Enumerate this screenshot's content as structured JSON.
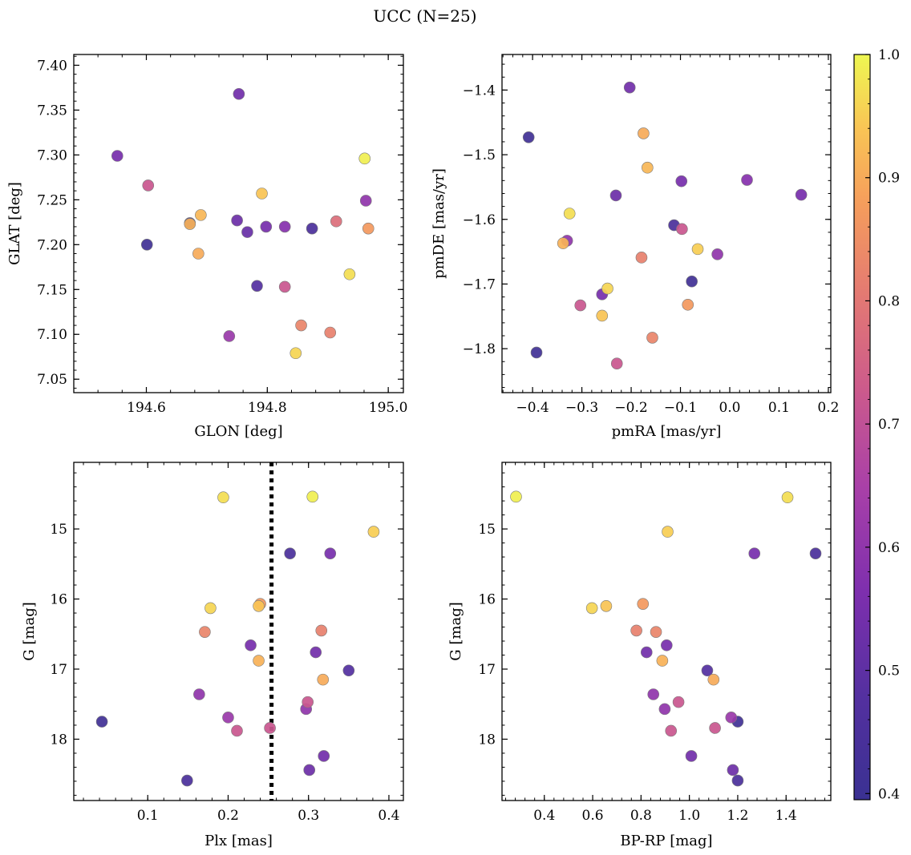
{
  "suptitle": "UCC (N=25)",
  "colorbar": {
    "ticks": [
      "0.4",
      "0.5",
      "0.6",
      "0.7",
      "0.8",
      "0.9",
      "1.0"
    ],
    "tick_values": [
      0.4,
      0.5,
      0.6,
      0.7,
      0.8,
      0.9,
      1.0
    ],
    "range": [
      0.395,
      1.0
    ],
    "colormap": "plasma"
  },
  "chart_data": [
    {
      "type": "scatter",
      "xlabel": "GLON [deg]",
      "ylabel": "GLAT [deg]",
      "xlim": [
        194.48,
        195.025
      ],
      "ylim": [
        7.035,
        7.412
      ],
      "xticks": [
        194.6,
        194.8,
        195.0
      ],
      "xticklabels": [
        "194.6",
        "194.8",
        "195.0"
      ],
      "yticks": [
        7.05,
        7.1,
        7.15,
        7.2,
        7.25,
        7.3,
        7.35,
        7.4
      ],
      "yticklabels": [
        "7.05",
        "7.10",
        "7.15",
        "7.20",
        "7.25",
        "7.30",
        "7.35",
        "7.40"
      ],
      "points": [
        {
          "x": 194.552,
          "y": 7.299,
          "c": 0.55
        },
        {
          "x": 194.601,
          "y": 7.2,
          "c": 0.42
        },
        {
          "x": 194.603,
          "y": 7.266,
          "c": 0.72
        },
        {
          "x": 194.672,
          "y": 7.224,
          "c": 0.42
        },
        {
          "x": 194.672,
          "y": 7.223,
          "c": 0.91
        },
        {
          "x": 194.686,
          "y": 7.19,
          "c": 0.9
        },
        {
          "x": 194.69,
          "y": 7.233,
          "c": 0.92
        },
        {
          "x": 194.737,
          "y": 7.098,
          "c": 0.62
        },
        {
          "x": 194.75,
          "y": 7.227,
          "c": 0.53
        },
        {
          "x": 194.753,
          "y": 7.368,
          "c": 0.54
        },
        {
          "x": 194.767,
          "y": 7.214,
          "c": 0.52
        },
        {
          "x": 194.783,
          "y": 7.154,
          "c": 0.48
        },
        {
          "x": 194.791,
          "y": 7.257,
          "c": 0.94
        },
        {
          "x": 194.798,
          "y": 7.22,
          "c": 0.55
        },
        {
          "x": 194.829,
          "y": 7.22,
          "c": 0.58
        },
        {
          "x": 194.829,
          "y": 7.153,
          "c": 0.72
        },
        {
          "x": 194.847,
          "y": 7.079,
          "c": 0.96
        },
        {
          "x": 194.856,
          "y": 7.11,
          "c": 0.83
        },
        {
          "x": 194.874,
          "y": 7.218,
          "c": 0.45
        },
        {
          "x": 194.904,
          "y": 7.102,
          "c": 0.82
        },
        {
          "x": 194.914,
          "y": 7.226,
          "c": 0.78
        },
        {
          "x": 194.936,
          "y": 7.167,
          "c": 0.97
        },
        {
          "x": 194.961,
          "y": 7.296,
          "c": 0.99
        },
        {
          "x": 194.963,
          "y": 7.249,
          "c": 0.6
        },
        {
          "x": 194.967,
          "y": 7.218,
          "c": 0.87
        }
      ]
    },
    {
      "type": "scatter",
      "xlabel": "pmRA [mas/yr]",
      "ylabel": "pmDE [mas/yr]",
      "xlim": [
        -0.462,
        0.205
      ],
      "ylim": [
        -1.868,
        -1.345
      ],
      "xticks": [
        -0.4,
        -0.3,
        -0.2,
        -0.1,
        0.0,
        0.1,
        0.2
      ],
      "xticklabels": [
        "−0.4",
        "−0.3",
        "−0.2",
        "−0.1",
        "0.0",
        "0.1",
        "0.2"
      ],
      "yticks": [
        -1.8,
        -1.7,
        -1.6,
        -1.5,
        -1.4
      ],
      "yticklabels": [
        "−1.8",
        "−1.7",
        "−1.6",
        "−1.5",
        "−1.4"
      ],
      "points": [
        {
          "x": -0.408,
          "y": -1.473,
          "c": 0.42
        },
        {
          "x": -0.392,
          "y": -1.806,
          "c": 0.42
        },
        {
          "x": -0.338,
          "y": -1.637,
          "c": 0.91
        },
        {
          "x": -0.33,
          "y": -1.633,
          "c": 0.6
        },
        {
          "x": -0.325,
          "y": -1.591,
          "c": 0.97
        },
        {
          "x": -0.303,
          "y": -1.733,
          "c": 0.72
        },
        {
          "x": -0.259,
          "y": -1.749,
          "c": 0.94
        },
        {
          "x": -0.259,
          "y": -1.716,
          "c": 0.55
        },
        {
          "x": -0.248,
          "y": -1.707,
          "c": 0.96
        },
        {
          "x": -0.231,
          "y": -1.563,
          "c": 0.53
        },
        {
          "x": -0.229,
          "y": -1.823,
          "c": 0.72
        },
        {
          "x": -0.203,
          "y": -1.396,
          "c": 0.54
        },
        {
          "x": -0.179,
          "y": -1.659,
          "c": 0.82
        },
        {
          "x": -0.175,
          "y": -1.467,
          "c": 0.9
        },
        {
          "x": -0.167,
          "y": -1.52,
          "c": 0.92
        },
        {
          "x": -0.157,
          "y": -1.783,
          "c": 0.83
        },
        {
          "x": -0.113,
          "y": -1.609,
          "c": 0.45
        },
        {
          "x": -0.098,
          "y": -1.541,
          "c": 0.55
        },
        {
          "x": -0.097,
          "y": -1.615,
          "c": 0.72
        },
        {
          "x": -0.085,
          "y": -1.732,
          "c": 0.87
        },
        {
          "x": -0.077,
          "y": -1.696,
          "c": 0.42
        },
        {
          "x": -0.065,
          "y": -1.646,
          "c": 0.95
        },
        {
          "x": -0.025,
          "y": -1.654,
          "c": 0.6
        },
        {
          "x": 0.035,
          "y": -1.539,
          "c": 0.58
        },
        {
          "x": 0.145,
          "y": -1.562,
          "c": 0.55
        }
      ]
    },
    {
      "type": "scatter",
      "xlabel": "Plx [mas]",
      "ylabel": "G [mag]",
      "xlim": [
        0.008,
        0.418
      ],
      "ylim": [
        18.875,
        14.05
      ],
      "xticks": [
        0.1,
        0.2,
        0.3,
        0.4
      ],
      "xticklabels": [
        "0.1",
        "0.2",
        "0.3",
        "0.4"
      ],
      "yticks": [
        15,
        16,
        17,
        18
      ],
      "yticklabels": [
        "15",
        "16",
        "17",
        "18"
      ],
      "vline": 0.254,
      "points": [
        {
          "x": 0.043,
          "y": 17.75,
          "c": 0.42
        },
        {
          "x": 0.149,
          "y": 18.59,
          "c": 0.45
        },
        {
          "x": 0.164,
          "y": 17.36,
          "c": 0.6
        },
        {
          "x": 0.171,
          "y": 16.47,
          "c": 0.83
        },
        {
          "x": 0.178,
          "y": 16.13,
          "c": 0.96
        },
        {
          "x": 0.194,
          "y": 14.55,
          "c": 0.97
        },
        {
          "x": 0.2,
          "y": 17.69,
          "c": 0.62
        },
        {
          "x": 0.211,
          "y": 17.88,
          "c": 0.72
        },
        {
          "x": 0.228,
          "y": 16.66,
          "c": 0.55
        },
        {
          "x": 0.238,
          "y": 16.1,
          "c": 0.94
        },
        {
          "x": 0.238,
          "y": 16.88,
          "c": 0.91
        },
        {
          "x": 0.24,
          "y": 16.07,
          "c": 0.87
        },
        {
          "x": 0.252,
          "y": 17.84,
          "c": 0.72
        },
        {
          "x": 0.277,
          "y": 15.35,
          "c": 0.45
        },
        {
          "x": 0.297,
          "y": 17.57,
          "c": 0.6
        },
        {
          "x": 0.299,
          "y": 17.47,
          "c": 0.72
        },
        {
          "x": 0.301,
          "y": 18.44,
          "c": 0.53
        },
        {
          "x": 0.305,
          "y": 14.54,
          "c": 0.99
        },
        {
          "x": 0.309,
          "y": 16.76,
          "c": 0.54
        },
        {
          "x": 0.316,
          "y": 16.45,
          "c": 0.82
        },
        {
          "x": 0.318,
          "y": 17.15,
          "c": 0.9
        },
        {
          "x": 0.319,
          "y": 18.24,
          "c": 0.54
        },
        {
          "x": 0.327,
          "y": 15.35,
          "c": 0.55
        },
        {
          "x": 0.35,
          "y": 17.02,
          "c": 0.48
        },
        {
          "x": 0.381,
          "y": 15.04,
          "c": 0.95
        }
      ]
    },
    {
      "type": "scatter",
      "xlabel": "BP-RP [mag]",
      "ylabel": "G [mag]",
      "xlim": [
        0.225,
        1.585
      ],
      "ylim": [
        18.875,
        14.05
      ],
      "xticks": [
        0.4,
        0.6,
        0.8,
        1.0,
        1.2,
        1.4
      ],
      "xticklabels": [
        "0.4",
        "0.6",
        "0.8",
        "1.0",
        "1.2",
        "1.4"
      ],
      "yticks": [
        15,
        16,
        17,
        18
      ],
      "yticklabels": [
        "15",
        "16",
        "17",
        "18"
      ],
      "points": [
        {
          "x": 0.283,
          "y": 14.54,
          "c": 0.99
        },
        {
          "x": 0.597,
          "y": 16.13,
          "c": 0.96
        },
        {
          "x": 0.656,
          "y": 16.1,
          "c": 0.94
        },
        {
          "x": 0.781,
          "y": 16.45,
          "c": 0.82
        },
        {
          "x": 0.808,
          "y": 16.07,
          "c": 0.87
        },
        {
          "x": 0.823,
          "y": 16.76,
          "c": 0.54
        },
        {
          "x": 0.851,
          "y": 17.36,
          "c": 0.6
        },
        {
          "x": 0.862,
          "y": 16.47,
          "c": 0.83
        },
        {
          "x": 0.888,
          "y": 16.88,
          "c": 0.91
        },
        {
          "x": 0.898,
          "y": 17.57,
          "c": 0.6
        },
        {
          "x": 0.906,
          "y": 16.66,
          "c": 0.55
        },
        {
          "x": 0.91,
          "y": 15.04,
          "c": 0.95
        },
        {
          "x": 0.924,
          "y": 17.88,
          "c": 0.72
        },
        {
          "x": 0.955,
          "y": 17.47,
          "c": 0.72
        },
        {
          "x": 1.008,
          "y": 18.24,
          "c": 0.54
        },
        {
          "x": 1.074,
          "y": 17.02,
          "c": 0.48
        },
        {
          "x": 1.1,
          "y": 17.15,
          "c": 0.9
        },
        {
          "x": 1.106,
          "y": 17.84,
          "c": 0.72
        },
        {
          "x": 1.173,
          "y": 17.69,
          "c": 0.62
        },
        {
          "x": 1.18,
          "y": 18.44,
          "c": 0.53
        },
        {
          "x": 1.2,
          "y": 18.59,
          "c": 0.45
        },
        {
          "x": 1.2,
          "y": 17.75,
          "c": 0.42
        },
        {
          "x": 1.269,
          "y": 15.35,
          "c": 0.55
        },
        {
          "x": 1.406,
          "y": 14.55,
          "c": 0.97
        },
        {
          "x": 1.522,
          "y": 15.35,
          "c": 0.45
        }
      ]
    }
  ]
}
